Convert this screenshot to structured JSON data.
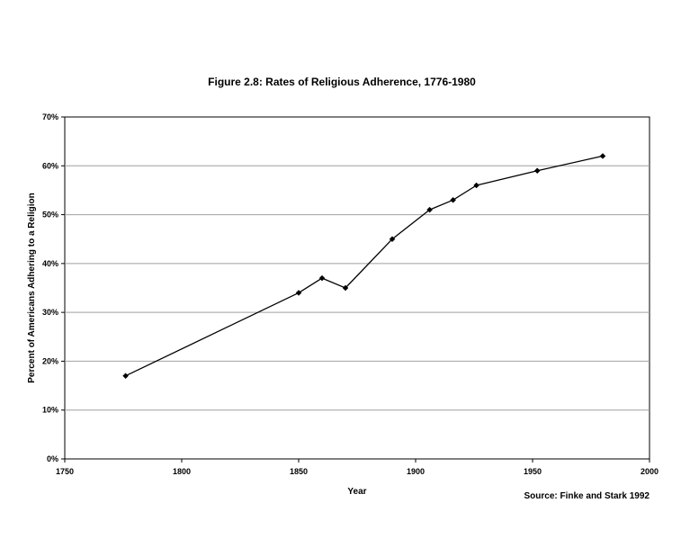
{
  "chart_data": {
    "type": "line",
    "title": "Figure 2.8: Rates of Religious Adherence, 1776-1980",
    "xlabel": "Year",
    "ylabel": "Percent of Americans Adhering to a Religion",
    "source": "Source: Finke and Stark 1992",
    "xlim": [
      1750,
      2000
    ],
    "ylim": [
      0,
      0.7
    ],
    "x_ticks": [
      1750,
      1800,
      1850,
      1900,
      1950,
      2000
    ],
    "x_tick_labels": [
      "1750",
      "1800",
      "1850",
      "1900",
      "1950",
      "2000"
    ],
    "y_ticks": [
      0,
      0.1,
      0.2,
      0.3,
      0.4,
      0.5,
      0.6,
      0.7
    ],
    "y_tick_labels": [
      "0%",
      "10%",
      "20%",
      "30%",
      "40%",
      "50%",
      "60%",
      "70%"
    ],
    "grid": "horizontal",
    "legend": "none",
    "series": [
      {
        "x": [
          1776,
          1850,
          1860,
          1870,
          1890,
          1906,
          1916,
          1926,
          1952,
          1980
        ],
        "values": [
          0.17,
          0.34,
          0.37,
          0.35,
          0.45,
          0.51,
          0.53,
          0.56,
          0.59,
          0.62
        ],
        "color": "#000000",
        "marker": "diamond"
      }
    ]
  }
}
